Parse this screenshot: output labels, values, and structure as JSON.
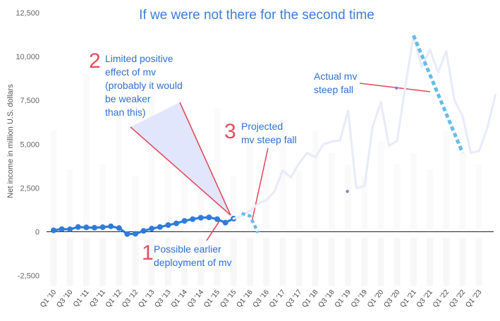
{
  "chart_data": {
    "type": "line",
    "title": "If we were not there for the second time",
    "ylabel": "Net income in million U.S. dollars",
    "ylim": [
      -2500,
      12500
    ],
    "yticks": [
      -2500,
      0,
      2500,
      5000,
      7500,
      10000,
      12500
    ],
    "ytick_labels": [
      "-2,500",
      "0",
      "2,500",
      "5,000",
      "7,500",
      "10,000",
      "12,500"
    ],
    "x_labels": [
      "Q1 '10",
      "Q3 '10",
      "Q1 '11",
      "Q3 '11",
      "Q1 '12",
      "Q3 '12",
      "Q1 '13",
      "Q3 '13",
      "Q1 '14",
      "Q3 '14",
      "Q1 '15",
      "Q3 '15",
      "Q1 '16",
      "Q3 '16",
      "Q1 '17",
      "Q3 '17",
      "Q1 '18",
      "Q3 '18",
      "Q1 '19",
      "Q3 '19",
      "Q1 '20",
      "Q3 '20",
      "Q1 '21",
      "Q3 '21",
      "Q1 '22",
      "Q3 '22",
      "Q1 '23"
    ],
    "x_label_index": [
      0,
      2,
      4,
      6,
      8,
      10,
      12,
      14,
      16,
      18,
      20,
      22,
      24,
      26,
      28,
      30,
      32,
      34,
      36,
      38,
      40,
      42,
      44,
      46,
      48,
      50,
      52
    ],
    "series": [
      {
        "style": "solid-dark-markers",
        "color": "#2f7bd8",
        "x": [
          0,
          1,
          2,
          3,
          4,
          5,
          6,
          7,
          8,
          9,
          10,
          11,
          12,
          13,
          14,
          15,
          16,
          17,
          18,
          19,
          20,
          21,
          22
        ],
        "y": [
          80,
          150,
          140,
          270,
          250,
          230,
          260,
          310,
          210,
          -130,
          -120,
          50,
          180,
          270,
          380,
          480,
          620,
          720,
          800,
          820,
          720,
          520,
          750
        ]
      },
      {
        "style": "solid-faint",
        "color": "#e9ecf8",
        "x": [
          22,
          23,
          24,
          25,
          26,
          27,
          28,
          29,
          30,
          31,
          32,
          33,
          34,
          35,
          36,
          37,
          38,
          39,
          40,
          41,
          42,
          43,
          44,
          45,
          46,
          47,
          48,
          49,
          50,
          51,
          52,
          53,
          54
        ],
        "y": [
          750,
          900,
          1200,
          1600,
          1800,
          2300,
          3500,
          3100,
          3900,
          4500,
          4250,
          5000,
          5150,
          5200,
          6900,
          2500,
          2600,
          6000,
          7400,
          4900,
          5200,
          8300,
          11200,
          9400,
          10400,
          9100,
          10300,
          7500,
          6600,
          4500,
          4600,
          5900,
          7800
        ]
      },
      {
        "style": "dotted-projection",
        "color": "#63bdea",
        "x": [
          23,
          24,
          25
        ],
        "y": [
          1050,
          900,
          -50
        ]
      },
      {
        "style": "dotted-fall",
        "color": "#63bdea",
        "x": [
          44,
          50
        ],
        "y": [
          11200,
          4500
        ]
      }
    ],
    "grid": false,
    "annotations": [
      {
        "number": "1",
        "text": "Possible earlier deployment of mv",
        "lines": [
          "Possible earlier",
          "deployment of mv"
        ]
      },
      {
        "number": "2",
        "text": "Limited positive effect of mv (probably it would be weaker than this)",
        "lines": [
          "Limited positive",
          "effect of mv",
          "(probably it would",
          "be weaker",
          "than this)"
        ]
      },
      {
        "number": "3",
        "text": "Projected mv steep fall",
        "lines": [
          "Projected",
          "mv steep fall"
        ]
      },
      {
        "number": "",
        "text": "Actual mv steep fall",
        "lines": [
          "Actual mv",
          "steep fall"
        ]
      }
    ]
  },
  "colors": {
    "title": "#3b7ddd",
    "annotation_text": "#2f6fd0",
    "annotation_number": "#e24d5d",
    "pointer_line": "#e24d5d",
    "highlight_fill": "#dde2fb",
    "axis_text": "#666666",
    "zero_line": "#222222",
    "background_stripe": "#f7f7f7"
  }
}
